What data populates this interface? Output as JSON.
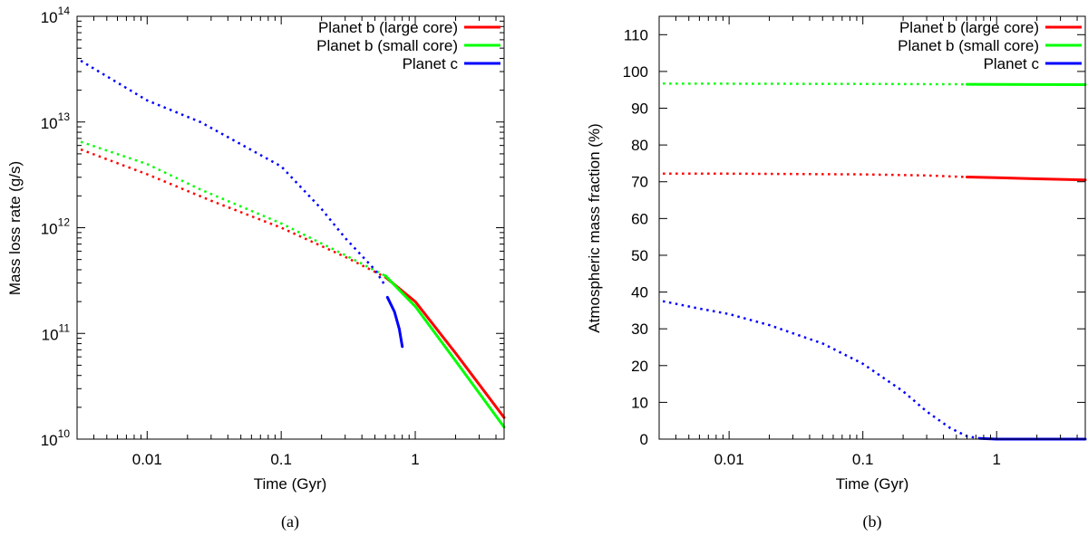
{
  "chart_data": [
    {
      "id": "a",
      "type": "line",
      "caption": "(a)",
      "xlabel": "Time (Gyr)",
      "ylabel": "Mass loss rate (g/s)",
      "xscale": "log",
      "yscale": "log",
      "xlim": [
        0.003,
        4.6
      ],
      "ylim": [
        10000000000.0,
        100000000000000.0
      ],
      "xticks": [
        {
          "value": 0.01,
          "label": "0.01"
        },
        {
          "value": 0.1,
          "label": "0.1"
        },
        {
          "value": 1,
          "label": "1"
        }
      ],
      "yticks": [
        {
          "value": 10000000000.0,
          "base": "10",
          "exp": "10"
        },
        {
          "value": 100000000000.0,
          "base": "10",
          "exp": "11"
        },
        {
          "value": 1000000000000.0,
          "base": "10",
          "exp": "12"
        },
        {
          "value": 10000000000000.0,
          "base": "10",
          "exp": "13"
        },
        {
          "value": 100000000000000.0,
          "base": "10",
          "exp": "14"
        }
      ],
      "legend": {
        "placement": "top-right",
        "entries": [
          {
            "label": "Planet b (large core)",
            "color": "#ff0000"
          },
          {
            "label": "Planet b (small core)",
            "color": "#00ff00"
          },
          {
            "label": "Planet c",
            "color": "#0000ff"
          }
        ]
      },
      "series": [
        {
          "name": "Planet b (large core)",
          "color": "#ff0000",
          "style": "dotted",
          "points": [
            [
              0.0032,
              5500000000000.0
            ],
            [
              0.01,
              3200000000000.0
            ],
            [
              0.03,
              1800000000000.0
            ],
            [
              0.1,
              1000000000000.0
            ],
            [
              0.3,
              530000000000.0
            ],
            [
              0.6,
              340000000000.0
            ]
          ]
        },
        {
          "name": "Planet b (large core)",
          "color": "#ff0000",
          "style": "solid",
          "points": [
            [
              0.6,
              340000000000.0
            ],
            [
              1,
              200000000000.0
            ],
            [
              2,
              65000000000.0
            ],
            [
              4.6,
              16000000000.0
            ]
          ]
        },
        {
          "name": "Planet b (small core)",
          "color": "#00ff00",
          "style": "dotted",
          "points": [
            [
              0.0032,
              6500000000000.0
            ],
            [
              0.01,
              4000000000000.0
            ],
            [
              0.025,
              2300000000000.0
            ],
            [
              0.1,
              1100000000000.0
            ],
            [
              0.3,
              550000000000.0
            ],
            [
              0.6,
              350000000000.0
            ]
          ]
        },
        {
          "name": "Planet b (small core)",
          "color": "#00ff00",
          "style": "solid",
          "points": [
            [
              0.6,
              350000000000.0
            ],
            [
              1,
              180000000000.0
            ],
            [
              2,
              55000000000.0
            ],
            [
              4.6,
              13000000000.0
            ]
          ]
        },
        {
          "name": "Planet c",
          "color": "#0000ff",
          "style": "dotted",
          "points": [
            [
              0.0032,
              38000000000000.0
            ],
            [
              0.01,
              16000000000000.0
            ],
            [
              0.025,
              10000000000000.0
            ],
            [
              0.1,
              3800000000000.0
            ],
            [
              0.2,
              1500000000000.0
            ],
            [
              0.3,
              800000000000.0
            ],
            [
              0.5,
              400000000000.0
            ],
            [
              0.6,
              280000000000.0
            ]
          ]
        },
        {
          "name": "Planet c",
          "color": "#0000ff",
          "style": "solid",
          "points": [
            [
              0.62,
              220000000000.0
            ],
            [
              0.7,
              160000000000.0
            ],
            [
              0.76,
              110000000000.0
            ],
            [
              0.8,
              75000000000.0
            ]
          ]
        }
      ]
    },
    {
      "id": "b",
      "type": "line",
      "caption": "(b)",
      "xlabel": "Time (Gyr)",
      "ylabel": "Atmospheric mass fraction (%)",
      "xscale": "log",
      "yscale": "linear",
      "xlim": [
        0.003,
        4.6
      ],
      "ylim": [
        0,
        115
      ],
      "xticks": [
        {
          "value": 0.01,
          "label": "0.01"
        },
        {
          "value": 0.1,
          "label": "0.1"
        },
        {
          "value": 1,
          "label": "1"
        }
      ],
      "yticks": [
        {
          "value": 0,
          "label": "0"
        },
        {
          "value": 10,
          "label": "10"
        },
        {
          "value": 20,
          "label": "20"
        },
        {
          "value": 30,
          "label": "30"
        },
        {
          "value": 40,
          "label": "40"
        },
        {
          "value": 50,
          "label": "50"
        },
        {
          "value": 60,
          "label": "60"
        },
        {
          "value": 70,
          "label": "70"
        },
        {
          "value": 80,
          "label": "80"
        },
        {
          "value": 90,
          "label": "90"
        },
        {
          "value": 100,
          "label": "100"
        },
        {
          "value": 110,
          "label": "110"
        }
      ],
      "legend": {
        "placement": "top-right",
        "entries": [
          {
            "label": "Planet b (large core)",
            "color": "#ff0000"
          },
          {
            "label": "Planet b (small core)",
            "color": "#00ff00"
          },
          {
            "label": "Planet c",
            "color": "#0000ff"
          }
        ]
      },
      "series": [
        {
          "name": "Planet b (large core)",
          "color": "#ff0000",
          "style": "dotted",
          "points": [
            [
              0.0032,
              72.2
            ],
            [
              0.01,
              72.2
            ],
            [
              0.1,
              72.0
            ],
            [
              0.3,
              71.7
            ],
            [
              0.6,
              71.3
            ]
          ]
        },
        {
          "name": "Planet b (large core)",
          "color": "#ff0000",
          "style": "solid",
          "points": [
            [
              0.6,
              71.3
            ],
            [
              1,
              71.1
            ],
            [
              2,
              70.8
            ],
            [
              4.6,
              70.5
            ]
          ]
        },
        {
          "name": "Planet b (small core)",
          "color": "#00ff00",
          "style": "dotted",
          "points": [
            [
              0.0032,
              96.7
            ],
            [
              0.1,
              96.6
            ],
            [
              0.6,
              96.5
            ]
          ]
        },
        {
          "name": "Planet b (small core)",
          "color": "#00ff00",
          "style": "solid",
          "points": [
            [
              0.6,
              96.5
            ],
            [
              4.6,
              96.4
            ]
          ]
        },
        {
          "name": "Planet c",
          "color": "#0000ff",
          "style": "dotted",
          "points": [
            [
              0.0032,
              37.5
            ],
            [
              0.006,
              35.5
            ],
            [
              0.01,
              34.0
            ],
            [
              0.02,
              31.0
            ],
            [
              0.05,
              26.0
            ],
            [
              0.1,
              20.5
            ],
            [
              0.2,
              13.0
            ],
            [
              0.3,
              7.5
            ],
            [
              0.45,
              3.0
            ],
            [
              0.6,
              0.8
            ],
            [
              0.75,
              0.2
            ]
          ]
        },
        {
          "name": "Planet c",
          "color": "#0000ff",
          "style": "solid",
          "points": [
            [
              0.75,
              0.2
            ],
            [
              1,
              0.0
            ],
            [
              4.6,
              0.0
            ]
          ]
        }
      ]
    }
  ]
}
